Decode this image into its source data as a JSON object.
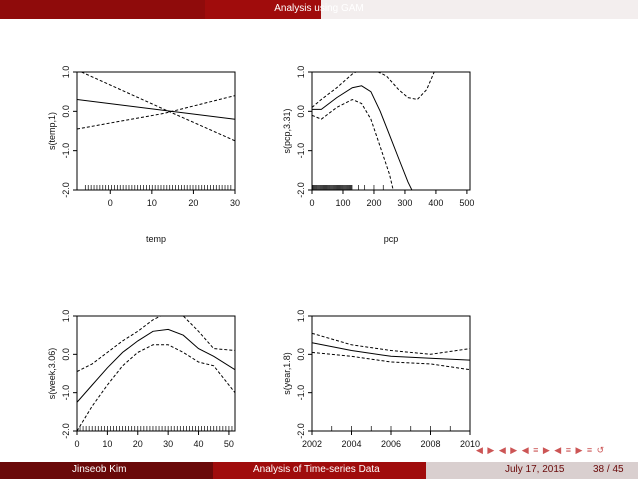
{
  "header": {
    "title": "Analysis using GAM"
  },
  "footer": {
    "author": "Jinseob Kim",
    "talk": "Analysis of Time-series Data",
    "date": "July 17, 2015",
    "page": "38 / 45"
  },
  "nav": {
    "symbols": "◀ ▶ ◀ ▶ ◀ ≡ ▶ ◀ ≡ ▶ ≡ ↺"
  },
  "chart_data": [
    {
      "type": "line",
      "xlabel": "temp",
      "ylabel": "s(temp,1)",
      "xticks": [
        0,
        10,
        20,
        30
      ],
      "yticks": [
        "-2.0",
        "-1.0",
        "0.0",
        "1.0"
      ],
      "xlim": [
        -8,
        30
      ],
      "ylim": [
        -2.0,
        1.0
      ],
      "series": [
        {
          "style": "solid",
          "x": [
            -8,
            30
          ],
          "y": [
            0.3,
            -0.2
          ]
        },
        {
          "style": "dashed",
          "x": [
            -8,
            13,
            30
          ],
          "y": [
            1.05,
            0.05,
            -0.75
          ]
        },
        {
          "style": "dashed",
          "x": [
            -8,
            13,
            30
          ],
          "y": [
            -0.45,
            -0.05,
            0.4
          ]
        }
      ],
      "rug": "dense"
    },
    {
      "type": "line",
      "xlabel": "pcp",
      "ylabel": "s(pcp,3.31)",
      "xticks": [
        0,
        100,
        200,
        300,
        400,
        500
      ],
      "yticks": [
        "-2.0",
        "-1.0",
        "0.0",
        "1.0"
      ],
      "xlim": [
        0,
        510
      ],
      "ylim": [
        -2.0,
        1.0
      ],
      "series": [
        {
          "style": "solid",
          "x": [
            0,
            30,
            80,
            130,
            160,
            190,
            220,
            250,
            280,
            310,
            335
          ],
          "y": [
            0.05,
            0.05,
            0.35,
            0.6,
            0.65,
            0.5,
            0.0,
            -0.6,
            -1.2,
            -1.8,
            -2.2
          ]
        },
        {
          "style": "dashed",
          "x": [
            0,
            30,
            80,
            130,
            165,
            200,
            240,
            280,
            310,
            340,
            370,
            400
          ],
          "y": [
            0.1,
            0.3,
            0.6,
            0.95,
            1.1,
            1.05,
            0.9,
            0.55,
            0.35,
            0.3,
            0.55,
            1.1
          ]
        },
        {
          "style": "dashed",
          "x": [
            0,
            30,
            80,
            130,
            160,
            190,
            220,
            250,
            265
          ],
          "y": [
            -0.1,
            -0.2,
            0.1,
            0.3,
            0.2,
            -0.2,
            -0.9,
            -1.6,
            -2.1
          ]
        }
      ],
      "rug": "sparse"
    },
    {
      "type": "line",
      "xlabel": "week",
      "ylabel": "s(week,3.06)",
      "xticks": [
        0,
        10,
        20,
        30,
        40,
        50
      ],
      "yticks": [
        "-2.0",
        "-1.0",
        "0.0",
        "1.0"
      ],
      "xlim": [
        0,
        52
      ],
      "ylim": [
        -2.0,
        1.0
      ],
      "series": [
        {
          "style": "solid",
          "x": [
            0,
            5,
            10,
            15,
            20,
            25,
            30,
            35,
            40,
            45,
            52
          ],
          "y": [
            -1.25,
            -0.8,
            -0.35,
            0.05,
            0.35,
            0.6,
            0.65,
            0.5,
            0.15,
            -0.05,
            -0.4
          ]
        },
        {
          "style": "dashed",
          "x": [
            0,
            5,
            10,
            15,
            20,
            25,
            30,
            35,
            40,
            45,
            52
          ],
          "y": [
            -0.45,
            -0.25,
            0.05,
            0.35,
            0.6,
            0.9,
            1.1,
            1.0,
            0.6,
            0.15,
            0.1
          ]
        },
        {
          "style": "dashed",
          "x": [
            0,
            5,
            10,
            15,
            20,
            25,
            30,
            35,
            40,
            45,
            52
          ],
          "y": [
            -2.0,
            -1.35,
            -0.8,
            -0.3,
            0.05,
            0.25,
            0.25,
            0.05,
            -0.2,
            -0.3,
            -1.0
          ]
        }
      ],
      "rug": "regular"
    },
    {
      "type": "line",
      "xlabel": "year",
      "ylabel": "s(year,1.8)",
      "xticks": [
        2002,
        2004,
        2006,
        2008,
        2010
      ],
      "yticks": [
        "-2.0",
        "-1.0",
        "0.0",
        "1.0"
      ],
      "xlim": [
        2002,
        2010
      ],
      "ylim": [
        -2.0,
        1.0
      ],
      "series": [
        {
          "style": "solid",
          "x": [
            2002,
            2004,
            2006,
            2008,
            2010
          ],
          "y": [
            0.3,
            0.1,
            -0.05,
            -0.1,
            -0.15
          ]
        },
        {
          "style": "dashed",
          "x": [
            2002,
            2004,
            2006,
            2008,
            2010
          ],
          "y": [
            0.55,
            0.25,
            0.1,
            0.0,
            0.15
          ]
        },
        {
          "style": "dashed",
          "x": [
            2002,
            2004,
            2006,
            2008,
            2010
          ],
          "y": [
            0.05,
            -0.05,
            -0.2,
            -0.25,
            -0.4
          ]
        }
      ],
      "rug": "few"
    }
  ]
}
